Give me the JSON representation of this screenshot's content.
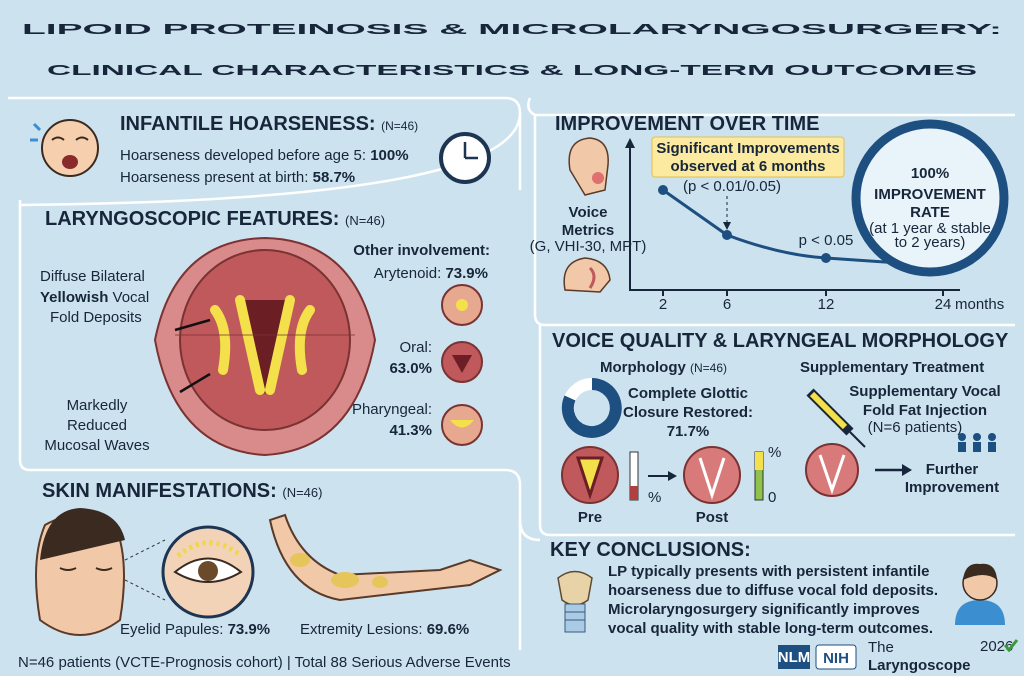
{
  "header": {
    "title_line1": "LIPOID PROTEINOSIS & MICROLARYNGOSURGERY:",
    "title_line2": "CLINICAL CHARACTERISTICS & LONG-TERM OUTCOMES"
  },
  "infantile": {
    "title": "INFANTILE HOARSENESS:",
    "n": "(N=46)",
    "lines": [
      {
        "text": "Hoarseness developed before age 5:",
        "value": "100%"
      },
      {
        "text": "Hoarseness present at birth:",
        "value": "58.7%"
      }
    ]
  },
  "laryngoscopic": {
    "title": "LARYNGOSCOPIC FEATURES:",
    "n": "(N=46)",
    "deposits": {
      "line1": "Diffuse Bilateral",
      "bold": "Yellowish",
      "rest": "Vocal",
      "line3": "Fold Deposits"
    },
    "mucosal": [
      "Markedly",
      "Reduced",
      "Mucosal Waves"
    ],
    "other_title": "Other involvement:",
    "items": [
      {
        "name": "Arytenoid:",
        "value": "73.9%"
      },
      {
        "name": "Oral:",
        "value": "63.0%"
      },
      {
        "name": "Pharyngeal:",
        "value": "41.3%"
      }
    ]
  },
  "skin": {
    "title": "SKIN MANIFESTATIONS:",
    "n": "(N=46)",
    "captions": [
      {
        "text": "Eyelid Papules:",
        "value": "73.9%"
      },
      {
        "text": "Extremity Lesions:",
        "value": "69.6%"
      }
    ]
  },
  "improvement": {
    "title": "IMPROVEMENT OVER TIME",
    "metrics": [
      "Voice",
      "Metrics"
    ],
    "metrics_note": "(G, VHI-30, MPT)",
    "callout": [
      "Significant Improvements",
      "observed at 6 months"
    ],
    "p1": "(p < 0.01/0.05)",
    "p2": "p < 0.05",
    "x_labels": [
      "2",
      "6",
      "12",
      "24"
    ],
    "x_unit": "months",
    "badge": {
      "value": "100%",
      "line1": "IMPROVEMENT",
      "line2": "RATE",
      "note1": "(at 1 year & stable",
      "note2": "to 2 years)"
    }
  },
  "voice": {
    "title": "VOICE QUALITY & LARYNGEAL MORPHOLOGY",
    "morph_title": "Morphology",
    "morph_n": "(N=46)",
    "closure": [
      "Complete Glottic",
      "Closure Restored:",
      "71.7%"
    ],
    "pre": "Pre",
    "post": "Post",
    "pct": "%",
    "zero": "0",
    "supp_title": "Supplementary Treatment",
    "supp": [
      "Supplementary Vocal",
      "Fold Fat Injection"
    ],
    "supp_n": "(N=6 patients)",
    "further": [
      "Further",
      "Improvement"
    ]
  },
  "conclusions": {
    "title": "KEY CONCLUSIONS:",
    "lines": [
      "LP typically presents with persistent infantile",
      "hoarseness due to diffuse vocal fold deposits.",
      "Microlaryngosurgery significantly improves",
      "vocal quality with stable long-term outcomes."
    ]
  },
  "footer": {
    "note": "N=46 patients (VCTE-Prognosis cohort) | Total 88 Serious Adverse Events",
    "nlm": "NLM",
    "nih": "NIH",
    "the": "The",
    "journal": "Laryngoscope",
    "year": "2026"
  }
}
